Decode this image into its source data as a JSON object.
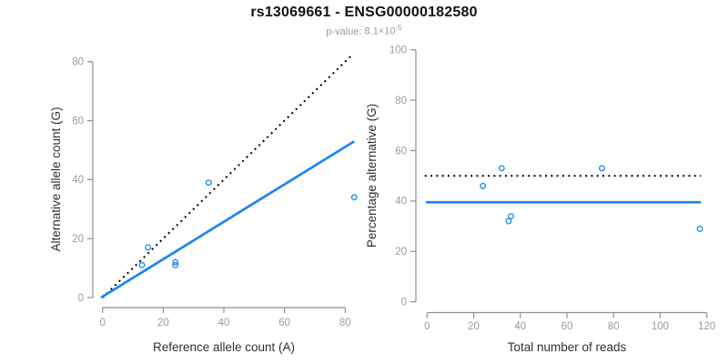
{
  "header": {
    "title": "rs13069661 - ENSG00000182580",
    "pvalue": {
      "label": "p-value:",
      "base": "8.1×10",
      "exponent": "-5"
    }
  },
  "colors": {
    "accent_blue": "#1c86ee",
    "dotted_black": "#000000",
    "axis_line_gray": "#8f8f8f",
    "tick_label_gray": "#9b9b9b",
    "axis_title_dark": "#303030"
  },
  "chart_data": [
    {
      "type": "scatter",
      "panel": "left",
      "xlabel": "Reference allele count (A)",
      "ylabel": "Alternative allele count (G)",
      "xlim": [
        0,
        80
      ],
      "ylim": [
        0,
        80
      ],
      "xticks": [
        0,
        20,
        40,
        60,
        80
      ],
      "yticks": [
        0,
        20,
        40,
        60,
        80
      ],
      "points": [
        [
          13,
          11
        ],
        [
          15,
          17
        ],
        [
          24,
          11
        ],
        [
          24,
          12
        ],
        [
          35,
          39
        ],
        [
          83,
          34
        ]
      ],
      "lines": [
        {
          "name": "identity-line",
          "style": "dotted",
          "color": "#000000",
          "from": [
            0,
            0
          ],
          "to": [
            82,
            82
          ]
        },
        {
          "name": "fit-line",
          "style": "solid",
          "color": "#1c86ee",
          "from": [
            -0.5,
            0
          ],
          "to": [
            83,
            53
          ]
        }
      ],
      "grid": false,
      "legend": null
    },
    {
      "type": "scatter",
      "panel": "right",
      "xlabel": "Total number of reads",
      "ylabel": "Percentage alternative (G)",
      "xlim": [
        0,
        120
      ],
      "ylim": [
        0,
        100
      ],
      "xticks": [
        0,
        20,
        40,
        60,
        80,
        100,
        120
      ],
      "yticks": [
        0,
        20,
        40,
        60,
        80,
        100
      ],
      "points": [
        [
          24,
          46
        ],
        [
          32,
          53
        ],
        [
          35,
          32
        ],
        [
          36,
          34
        ],
        [
          75,
          53
        ],
        [
          117,
          29
        ]
      ],
      "lines": [
        {
          "name": "fifty-percent-line",
          "style": "dotted",
          "color": "#000000",
          "from": [
            -1,
            50
          ],
          "to": [
            117.5,
            50
          ]
        },
        {
          "name": "mean-percentage-line",
          "style": "solid",
          "color": "#1c86ee",
          "from": [
            -0.5,
            39.5
          ],
          "to": [
            117.5,
            39.5
          ]
        }
      ],
      "grid": false,
      "legend": null
    }
  ]
}
